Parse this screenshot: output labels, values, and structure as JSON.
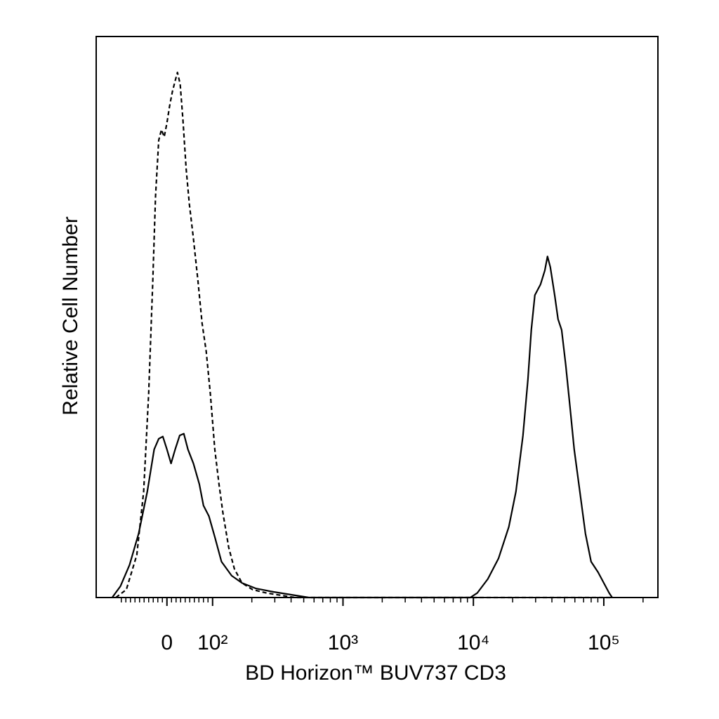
{
  "chart_data": {
    "type": "line",
    "xlabel": "BD Horizon™ BUV737 CD3",
    "ylabel": "Relative Cell Number",
    "xscale": "symlog",
    "xlim": [
      -155,
      260000
    ],
    "ylim": [
      0,
      100
    ],
    "xticks": [
      0,
      {
        "value": 100,
        "label": "10²"
      },
      {
        "value": 1000,
        "label": "10³"
      },
      {
        "value": 10000,
        "label": "10⁴"
      },
      {
        "value": 100000,
        "label": "10⁵"
      }
    ],
    "xminorticks": [
      -100,
      -90,
      -80,
      -70,
      -60,
      -50,
      -40,
      -30,
      -20,
      -10,
      10,
      20,
      30,
      40,
      50,
      60,
      70,
      80,
      90,
      200,
      300,
      400,
      500,
      600,
      700,
      800,
      900,
      2000,
      3000,
      4000,
      5000,
      6000,
      7000,
      8000,
      9000,
      20000,
      30000,
      40000,
      50000,
      60000,
      70000,
      80000,
      90000,
      200000
    ],
    "series": [
      {
        "color": "#000000",
        "style": "dashed",
        "x": [
          -112,
          -89,
          -66,
          -51,
          -40,
          -31,
          -25,
          -18,
          -12,
          -6,
          0,
          6,
          12,
          18,
          23,
          29,
          35,
          42,
          49,
          58,
          68,
          77,
          86,
          95,
          104,
          112,
          120,
          133,
          147,
          168,
          203,
          260,
          333,
          427,
          10700,
          100000,
          113000
        ],
        "values": [
          0,
          1.4,
          7.6,
          18.9,
          36.4,
          56.4,
          71.5,
          81.5,
          83.4,
          82.1,
          84.6,
          87.7,
          90.2,
          92.1,
          93.6,
          91.5,
          85.2,
          76.5,
          70.2,
          64.0,
          56.4,
          48.9,
          43.9,
          36.4,
          26.4,
          20.2,
          15.1,
          8.9,
          5.1,
          2.6,
          1.4,
          0.8,
          0.4,
          0,
          0,
          0,
          0
        ]
      },
      {
        "color": "#000000",
        "style": "solid",
        "x": [
          -120,
          -102,
          -82,
          -62,
          -43,
          -28,
          -18,
          -9,
          0,
          9,
          18,
          28,
          37,
          46,
          58,
          71,
          80,
          92,
          104,
          117,
          140,
          168,
          216,
          294,
          401,
          547,
          9470,
          10700,
          12900,
          15600,
          18700,
          21200,
          24000,
          26200,
          27800,
          29600,
          32700,
          35300,
          37000,
          38900,
          42000,
          44600,
          47500,
          51100,
          55100,
          59300,
          65500,
          72300,
          79900,
          90400,
          100000,
          110000,
          116000
        ],
        "values": [
          0,
          2.0,
          5.8,
          11.4,
          18.9,
          26.4,
          28.3,
          28.7,
          26.4,
          23.9,
          26.4,
          28.9,
          29.2,
          26.4,
          23.9,
          20.2,
          16.4,
          14.5,
          10.8,
          6.4,
          3.9,
          2.6,
          1.6,
          1.0,
          0.5,
          0,
          0,
          0.8,
          3.3,
          7.0,
          12.6,
          18.9,
          28.9,
          38.9,
          47.7,
          53.9,
          55.8,
          58.3,
          60.8,
          58.9,
          53.9,
          49.6,
          47.7,
          41.4,
          33.9,
          26.4,
          18.9,
          11.4,
          6.4,
          4.5,
          2.6,
          0.8,
          0
        ]
      }
    ]
  }
}
